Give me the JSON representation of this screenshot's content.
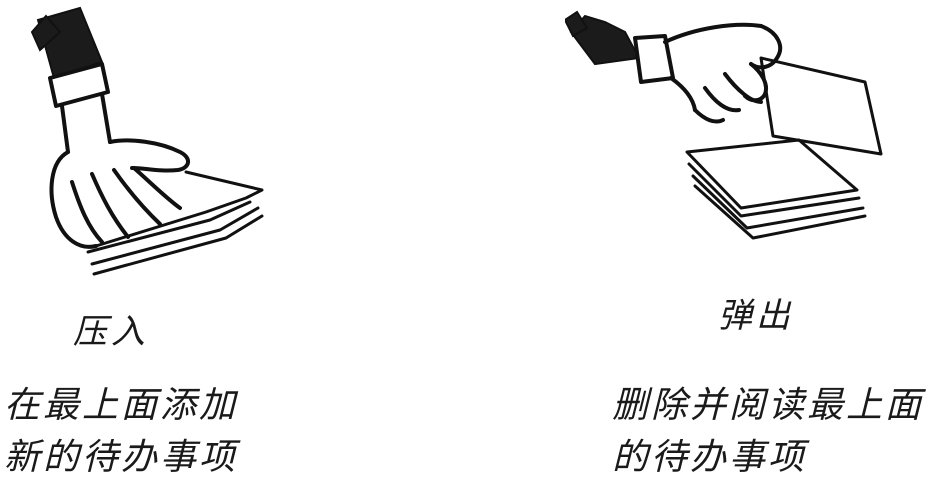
{
  "push": {
    "caption": "压入",
    "description_lines": [
      "在最上面添加",
      "新的待办事项"
    ]
  },
  "pop": {
    "caption": "弹出",
    "description_lines": [
      "删除并阅读最上面",
      "的待办事项"
    ]
  }
}
